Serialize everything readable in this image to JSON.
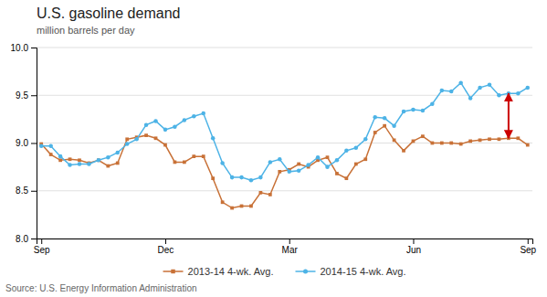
{
  "chart_data": {
    "type": "line",
    "title": "U.S. gasoline demand",
    "subtitle": "million barrels per day",
    "source": "Source: U.S. Energy Information Administration",
    "categories": [
      "Sep",
      null,
      null,
      null,
      null,
      null,
      null,
      null,
      null,
      null,
      null,
      null,
      null,
      "Dec",
      null,
      null,
      null,
      null,
      null,
      null,
      null,
      null,
      null,
      null,
      null,
      null,
      "Mar",
      null,
      null,
      null,
      null,
      null,
      null,
      null,
      null,
      null,
      null,
      null,
      null,
      "Jun",
      null,
      null,
      null,
      null,
      null,
      null,
      null,
      null,
      null,
      null,
      null,
      "Sep"
    ],
    "series": [
      {
        "name": "2013-14  4-wk. Avg.",
        "color": "#c87137",
        "marker": "square",
        "values": [
          8.99,
          8.88,
          8.82,
          8.83,
          8.82,
          8.79,
          8.82,
          8.76,
          8.79,
          9.04,
          9.06,
          9.08,
          9.05,
          8.98,
          8.8,
          8.8,
          8.86,
          8.86,
          8.63,
          8.38,
          8.32,
          8.34,
          8.34,
          8.48,
          8.46,
          8.7,
          8.72,
          8.78,
          8.75,
          8.82,
          8.85,
          8.68,
          8.63,
          8.78,
          8.83,
          9.11,
          9.18,
          9.03,
          8.92,
          9.02,
          9.07,
          9.0,
          9.0,
          9.0,
          8.99,
          9.02,
          9.03,
          9.04,
          9.04,
          9.05,
          9.05,
          8.98
        ]
      },
      {
        "name": "2014-15  4-wk. Avg.",
        "color": "#4db3e6",
        "marker": "circle",
        "values": [
          8.97,
          8.97,
          8.86,
          8.77,
          8.78,
          8.78,
          8.82,
          8.85,
          8.9,
          8.99,
          9.04,
          9.19,
          9.23,
          9.14,
          9.17,
          9.24,
          9.28,
          9.31,
          9.05,
          8.79,
          8.64,
          8.64,
          8.61,
          8.64,
          8.8,
          8.83,
          8.7,
          8.71,
          8.77,
          8.85,
          8.75,
          8.82,
          8.92,
          8.95,
          9.04,
          9.27,
          9.26,
          9.18,
          9.33,
          9.35,
          9.34,
          9.41,
          9.55,
          9.54,
          9.63,
          9.47,
          9.58,
          9.61,
          9.5,
          9.52,
          9.52,
          9.58
        ]
      }
    ],
    "ylim": [
      8.0,
      10.0
    ],
    "yticks": [
      {
        "value": 8.0,
        "label": "8.0"
      },
      8.5,
      {
        "value": 9.0,
        "label": "9.0"
      },
      9.5,
      {
        "value": 10.0,
        "label": "10.0"
      }
    ],
    "grid": true,
    "legend": "bottom",
    "annotations": [
      {
        "type": "arrow",
        "x": 49,
        "y_start": 9.52,
        "y_end": 9.05,
        "color": "#cc0000"
      }
    ]
  }
}
